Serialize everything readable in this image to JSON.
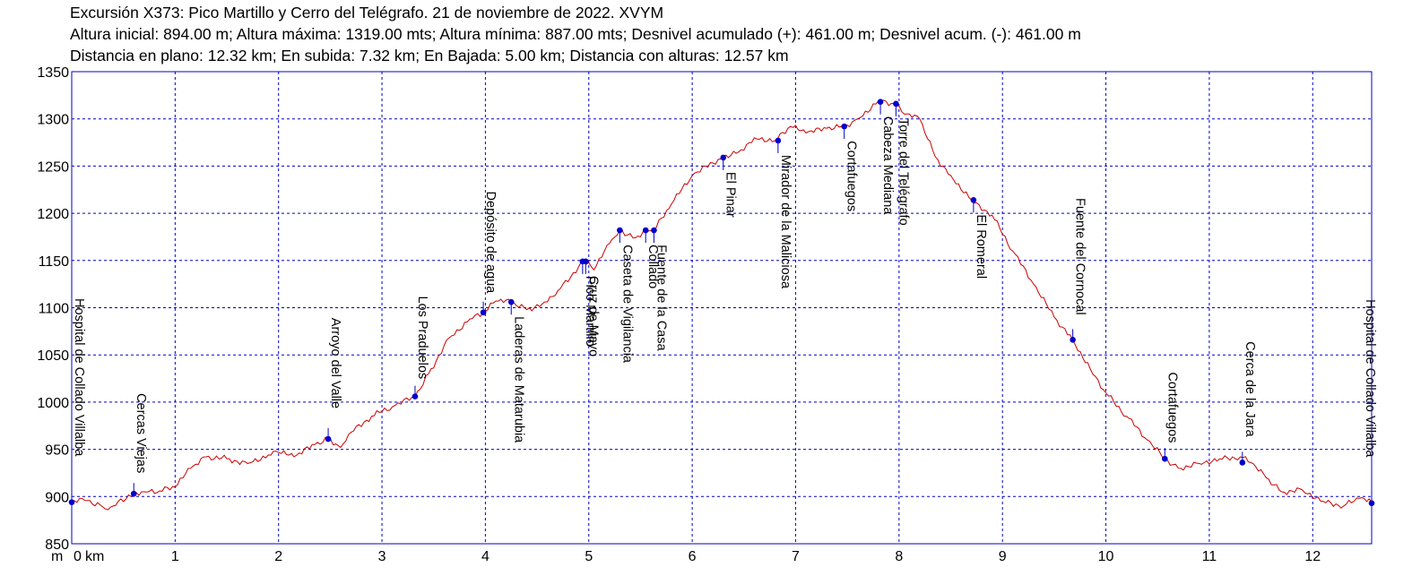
{
  "chart_data": {
    "type": "line",
    "title": "Excursión X373: Pico Martillo y Cerro del Telégrafo. 21 de noviembre de 2022. XVYM",
    "subtitle_lines": [
      "Altura inicial: 894.00 m; Altura máxima: 1319.00 mts; Altura mínima: 887.00 mts; Desnivel acumulado (+): 461.00 m; Desnivel acum. (-): 461.00 m",
      "Distancia en plano: 12.32 km; En subida: 7.32 km; En Bajada: 5.00 km; Distancia con alturas: 12.57 km"
    ],
    "xlabel_unit": "km",
    "ylabel_unit": "m",
    "xlim": [
      0,
      12.57
    ],
    "ylim": [
      850,
      1350
    ],
    "x_ticks": [
      "0",
      "1",
      "2",
      "3",
      "4",
      "5",
      "6",
      "7",
      "8",
      "9",
      "10",
      "11",
      "12"
    ],
    "y_ticks": [
      "850",
      "900",
      "950",
      "1000",
      "1050",
      "1100",
      "1150",
      "1200",
      "1250",
      "1300",
      "1350"
    ],
    "grid": true,
    "colors": {
      "profile": "#cc0000",
      "grid": "#0000cc",
      "waypoint": "#0000cc",
      "frame": "#0000cc"
    },
    "series": [
      {
        "x": [
          0,
          0.1,
          0.2,
          0.3,
          0.35,
          0.45,
          0.6,
          0.7,
          0.85,
          1.0,
          1.15,
          1.3,
          1.5,
          1.7,
          1.9,
          2.0,
          2.15,
          2.35,
          2.48,
          2.6,
          2.7,
          2.9,
          3.1,
          3.32,
          3.45,
          3.65,
          3.85,
          4.0,
          4.1,
          4.25,
          4.4,
          4.55,
          4.7,
          4.95,
          5.05,
          5.2,
          5.3,
          5.45,
          5.55,
          5.63,
          5.8,
          6.0,
          6.3,
          6.45,
          6.6,
          6.8,
          6.95,
          7.1,
          7.3,
          7.47,
          7.6,
          7.8,
          7.95,
          8.05,
          8.2,
          8.35,
          8.5,
          8.7,
          8.9,
          9.1,
          9.3,
          9.5,
          9.68,
          9.85,
          10.0,
          10.2,
          10.4,
          10.57,
          10.7,
          10.9,
          11.1,
          11.3,
          11.4,
          11.55,
          11.7,
          11.9,
          12.1,
          12.3,
          12.45,
          12.57
        ],
        "y": [
          894,
          898,
          892,
          889,
          886,
          895,
          903,
          905,
          906,
          910,
          930,
          942,
          940,
          935,
          944,
          947,
          942,
          955,
          962,
          952,
          968,
          985,
          995,
          1006,
          1030,
          1068,
          1088,
          1096,
          1107,
          1106,
          1098,
          1104,
          1118,
          1149,
          1140,
          1168,
          1182,
          1174,
          1182,
          1182,
          1210,
          1240,
          1260,
          1265,
          1280,
          1277,
          1292,
          1285,
          1290,
          1292,
          1300,
          1319,
          1316,
          1305,
          1300,
          1260,
          1240,
          1214,
          1198,
          1160,
          1125,
          1090,
          1066,
          1035,
          1010,
          985,
          960,
          940,
          930,
          935,
          940,
          942,
          936,
          920,
          905,
          907,
          895,
          890,
          898,
          894
        ]
      }
    ],
    "waypoints": [
      {
        "name": "Hospital de Collado Villalba",
        "x": 0,
        "y": 894,
        "label_dir": "up"
      },
      {
        "name": "Cercas Viejas",
        "x": 0.6,
        "y": 903,
        "label_dir": "up"
      },
      {
        "name": "Arroyo del Valle",
        "x": 2.48,
        "y": 961,
        "label_dir": "up"
      },
      {
        "name": "Los Praduelos",
        "x": 3.32,
        "y": 1006,
        "label_dir": "up"
      },
      {
        "name": "Depósito de agua",
        "x": 3.98,
        "y": 1095,
        "label_dir": "up"
      },
      {
        "name": "Laderas de Matarubia",
        "x": 4.25,
        "y": 1106,
        "label_dir": "down"
      },
      {
        "name": "Pico Martillo",
        "x": 4.94,
        "y": 1149,
        "label_dir": "down"
      },
      {
        "name": "Cruz de Mayo",
        "x": 4.97,
        "y": 1149,
        "label_dir": "down"
      },
      {
        "name": "Caseta de Vigilancia",
        "x": 5.3,
        "y": 1182,
        "label_dir": "down"
      },
      {
        "name": "Collado",
        "x": 5.55,
        "y": 1182,
        "label_dir": "down"
      },
      {
        "name": "Fuente de la Casa",
        "x": 5.63,
        "y": 1182,
        "label_dir": "down"
      },
      {
        "name": "El Pinar",
        "x": 6.3,
        "y": 1259,
        "label_dir": "down"
      },
      {
        "name": "Mirador de la Maliciosa",
        "x": 6.83,
        "y": 1277,
        "label_dir": "down"
      },
      {
        "name": "Cortafuegos",
        "x": 7.47,
        "y": 1292,
        "label_dir": "down"
      },
      {
        "name": "Cabeza Mediana",
        "x": 7.82,
        "y": 1318,
        "label_dir": "down"
      },
      {
        "name": "Torre del Telégrafo",
        "x": 7.97,
        "y": 1316,
        "label_dir": "down"
      },
      {
        "name": "El Romeral",
        "x": 8.72,
        "y": 1214,
        "label_dir": "down"
      },
      {
        "name": "Fuente del Cornocal",
        "x": 9.68,
        "y": 1066,
        "label_dir": "up"
      },
      {
        "name": "Cortafuegos",
        "x": 10.57,
        "y": 940,
        "label_dir": "up"
      },
      {
        "name": "Cerca de la Jara",
        "x": 11.32,
        "y": 936,
        "label_dir": "up"
      },
      {
        "name": "Hospital de Collado Villalba",
        "x": 12.57,
        "y": 893,
        "label_dir": "up"
      }
    ]
  }
}
